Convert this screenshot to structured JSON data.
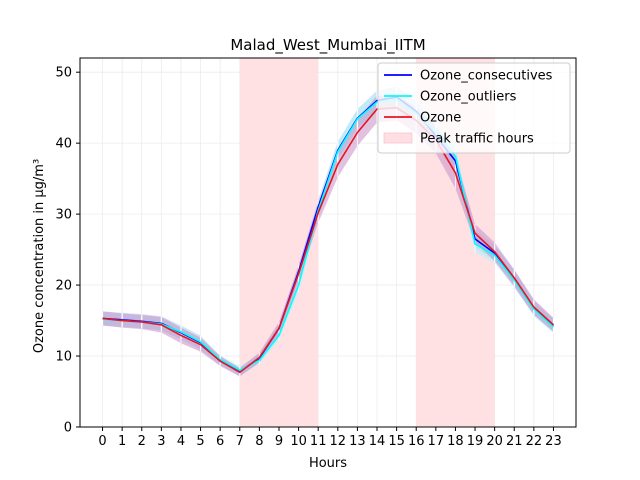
{
  "chart_data": {
    "type": "line",
    "title": "Malad_West_Mumbai_IITM",
    "xlabel": "Hours",
    "ylabel": "Ozone concentration in µg/m³",
    "xlim": [
      -1.15,
      24.15
    ],
    "ylim": [
      0,
      52
    ],
    "x_ticks": [
      0,
      1,
      2,
      3,
      4,
      5,
      6,
      7,
      8,
      9,
      10,
      11,
      12,
      13,
      14,
      15,
      16,
      17,
      18,
      19,
      20,
      21,
      22,
      23
    ],
    "y_ticks": [
      0,
      10,
      20,
      30,
      40,
      50
    ],
    "grid": true,
    "legend_position": "top-right",
    "peak_traffic_hours": [
      [
        7,
        11
      ],
      [
        16,
        20
      ]
    ],
    "peak_color": "#ffdfe3",
    "series": [
      {
        "name": "Ozone_consecutives",
        "color": "#0000ff",
        "values": [
          15.3,
          15.1,
          14.9,
          14.6,
          13.3,
          11.9,
          9.3,
          7.8,
          9.7,
          13.9,
          21.9,
          31.0,
          39.0,
          43.5,
          46.0,
          46.5,
          44.5,
          41.0,
          37.5,
          26.5,
          24.5,
          21.0,
          16.8,
          14.3
        ],
        "band_low": [
          14.3,
          14.1,
          13.9,
          13.6,
          12.3,
          10.9,
          8.7,
          7.2,
          9.1,
          13.2,
          20.9,
          30.0,
          37.8,
          42.2,
          44.6,
          45.0,
          43.0,
          39.5,
          36.0,
          25.3,
          23.4,
          19.9,
          15.8,
          13.4
        ],
        "band_high": [
          16.3,
          16.1,
          15.9,
          15.6,
          14.3,
          12.9,
          9.9,
          8.4,
          10.3,
          14.6,
          22.9,
          32.0,
          40.2,
          44.8,
          47.4,
          48.0,
          46.0,
          42.5,
          39.0,
          27.7,
          25.6,
          22.1,
          17.8,
          15.2
        ],
        "band_color": "#b9c6f0"
      },
      {
        "name": "Ozone_outliers",
        "color": "#00ffff",
        "values": [
          15.2,
          15.0,
          14.8,
          14.5,
          13.4,
          12.0,
          9.5,
          8.0,
          9.4,
          12.9,
          20.0,
          30.5,
          38.8,
          43.4,
          45.8,
          46.2,
          44.2,
          41.5,
          38.2,
          25.8,
          24.2,
          20.7,
          16.6,
          14.1
        ],
        "band_low": [
          14.4,
          14.2,
          14.0,
          13.7,
          12.6,
          11.2,
          8.9,
          7.4,
          8.8,
          12.2,
          19.0,
          29.3,
          37.4,
          42.0,
          44.4,
          44.8,
          42.8,
          40.1,
          36.8,
          24.6,
          23.1,
          19.6,
          15.6,
          13.2
        ],
        "band_high": [
          16.0,
          15.8,
          15.6,
          15.3,
          14.2,
          12.8,
          10.1,
          8.6,
          10.0,
          13.6,
          21.0,
          31.7,
          40.2,
          44.8,
          47.2,
          47.6,
          45.6,
          42.9,
          39.6,
          27.0,
          25.3,
          21.8,
          17.6,
          15.0
        ],
        "band_color": "#aef2f8"
      },
      {
        "name": "Ozone",
        "color": "#e8141e",
        "values": [
          15.3,
          15.0,
          14.8,
          14.4,
          12.9,
          11.6,
          9.3,
          7.7,
          9.8,
          13.9,
          21.6,
          30.2,
          37.0,
          41.5,
          44.8,
          45.0,
          43.2,
          40.5,
          35.8,
          27.3,
          24.7,
          21.0,
          16.9,
          14.4
        ],
        "band_low": [
          14.3,
          14.0,
          13.8,
          13.3,
          11.8,
          10.6,
          8.6,
          7.1,
          9.1,
          13.0,
          20.5,
          28.8,
          35.2,
          39.6,
          42.9,
          43.2,
          41.4,
          38.6,
          33.6,
          26.0,
          23.4,
          19.8,
          15.8,
          13.4
        ],
        "band_high": [
          16.3,
          16.0,
          15.8,
          15.5,
          14.0,
          12.6,
          10.0,
          8.3,
          10.5,
          14.8,
          22.7,
          31.6,
          38.8,
          43.4,
          46.7,
          46.8,
          45.0,
          42.4,
          38.0,
          28.6,
          26.0,
          22.2,
          18.0,
          15.4
        ],
        "band_color": "#c78fc6"
      }
    ],
    "legend": [
      {
        "label": "Ozone_consecutives",
        "kind": "line",
        "color": "#0000ff"
      },
      {
        "label": "Ozone_outliers",
        "kind": "line",
        "color": "#00ffff"
      },
      {
        "label": "Ozone",
        "kind": "line",
        "color": "#e8141e"
      },
      {
        "label": "Peak traffic hours",
        "kind": "patch",
        "color": "#ffdfe3"
      }
    ]
  }
}
